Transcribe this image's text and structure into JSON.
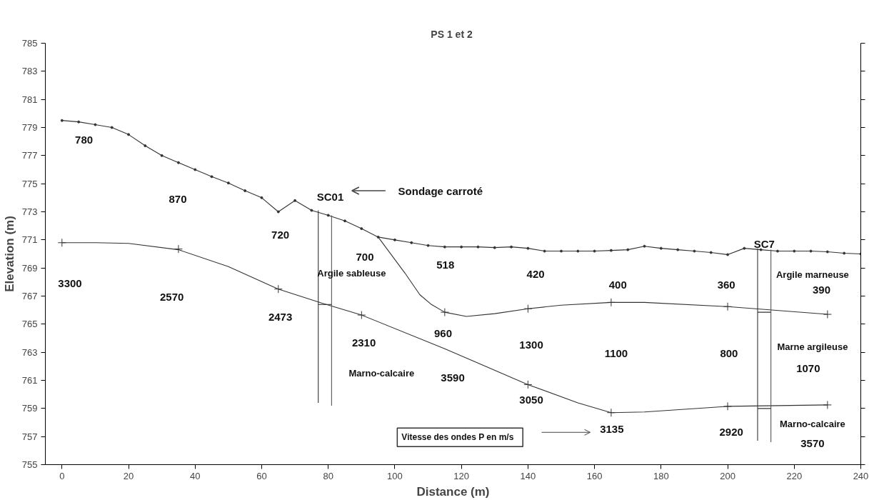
{
  "chart_data": {
    "type": "line",
    "title": "PS  1 et 2",
    "xlabel": "Distance (m)",
    "ylabel": "Elevation (m)",
    "xlim": [
      -5,
      240
    ],
    "ylim": [
      755,
      785
    ],
    "xticks": [
      0,
      20,
      40,
      60,
      80,
      100,
      120,
      140,
      160,
      180,
      200,
      220,
      240
    ],
    "yticks": [
      755,
      757,
      759,
      761,
      763,
      765,
      767,
      769,
      771,
      773,
      775,
      777,
      779,
      781,
      783,
      785
    ],
    "grid": false,
    "series": [
      {
        "type": "line",
        "marker": "circle",
        "color": "#333333",
        "x": [
          0,
          5,
          10,
          15,
          20,
          25,
          30,
          35,
          40,
          45,
          50,
          55,
          60,
          65,
          70,
          75,
          80,
          85,
          90,
          95,
          100,
          105,
          110,
          115,
          120,
          125,
          130,
          135,
          140,
          145,
          150,
          155,
          160,
          165,
          170,
          175,
          180,
          185,
          190,
          195,
          200,
          205,
          210,
          215,
          220,
          225,
          230,
          235,
          240
        ],
        "values": [
          779.5,
          779.4,
          779.2,
          779.0,
          778.5,
          777.7,
          777.0,
          776.5,
          776.0,
          775.5,
          775.05,
          774.5,
          774.0,
          773.0,
          773.8,
          773.1,
          772.75,
          772.35,
          771.8,
          771.2,
          771.0,
          770.8,
          770.6,
          770.5,
          770.5,
          770.5,
          770.45,
          770.5,
          770.4,
          770.2,
          770.2,
          770.2,
          770.2,
          770.25,
          770.3,
          770.55,
          770.4,
          770.3,
          770.2,
          770.1,
          769.95,
          770.4,
          770.3,
          770.2,
          770.2,
          770.2,
          770.15,
          770.05,
          770.0
        ]
      },
      {
        "type": "line",
        "marker": "none",
        "color": "#333333",
        "x": [
          95,
          103,
          107.5,
          111,
          115,
          121.5,
          130,
          140,
          150,
          165,
          175,
          200,
          230
        ],
        "values": [
          771.2,
          768.65,
          767.1,
          766.4,
          765.85,
          765.55,
          765.75,
          766.1,
          766.35,
          766.55,
          766.55,
          766.25,
          765.7
        ]
      },
      {
        "type": "line",
        "marker": "none",
        "color": "#333333",
        "x": [
          0,
          10,
          20,
          35,
          50,
          65,
          78,
          90,
          115,
          140,
          155,
          165,
          175,
          200,
          230
        ],
        "values": [
          770.8,
          770.8,
          770.75,
          770.3,
          769.1,
          767.5,
          766.5,
          765.65,
          763.25,
          760.7,
          759.4,
          758.7,
          758.75,
          759.15,
          759.25
        ]
      },
      {
        "type": "scatter",
        "marker": "cross",
        "color": "#333333",
        "x": [
          115,
          140,
          165,
          200,
          230,
          0,
          35,
          65,
          90,
          140,
          165,
          200,
          230
        ],
        "values": [
          765.85,
          766.1,
          766.55,
          766.25,
          765.7,
          770.8,
          770.35,
          767.5,
          765.65,
          760.7,
          758.7,
          759.15,
          759.25
        ]
      },
      {
        "type": "line",
        "marker": "none",
        "color": "#333333",
        "x": [
          77,
          77
        ],
        "values": [
          773.1,
          759.4
        ]
      },
      {
        "type": "line",
        "marker": "none",
        "color": "#555555",
        "x": [
          81,
          81
        ],
        "values": [
          772.75,
          759.2
        ]
      },
      {
        "type": "line",
        "marker": "none",
        "color": "#333333",
        "x": [
          77,
          81
        ],
        "values": [
          766.4,
          766.4
        ]
      },
      {
        "type": "line",
        "marker": "none",
        "color": "#333333",
        "x": [
          209,
          209
        ],
        "values": [
          770.4,
          756.7
        ]
      },
      {
        "type": "line",
        "marker": "none",
        "color": "#555555",
        "x": [
          213,
          213
        ],
        "values": [
          770.3,
          756.6
        ]
      },
      {
        "type": "line",
        "marker": "none",
        "color": "#333333",
        "x": [
          209,
          213
        ],
        "values": [
          765.85,
          765.85
        ]
      },
      {
        "type": "line",
        "marker": "none",
        "color": "#333333",
        "x": [
          209,
          213
        ],
        "values": [
          759.0,
          759.0
        ]
      }
    ],
    "annotations": [
      "780",
      "870",
      "720",
      "700",
      "Argile sableuse",
      "518",
      "420",
      "400",
      "360",
      "Argile marneuse",
      "390",
      "3300",
      "2570",
      "2473",
      "2310",
      "960",
      "1300",
      "1100",
      "800",
      "Marne argileuse",
      "1070",
      "Marno-calcaire",
      "3590",
      "3050",
      "3135",
      "2920",
      "Marno-calcaire",
      "3570",
      "SC01",
      "SC7",
      "Sondage carroté",
      "Vitesse des ondes P  en  m/s"
    ]
  }
}
